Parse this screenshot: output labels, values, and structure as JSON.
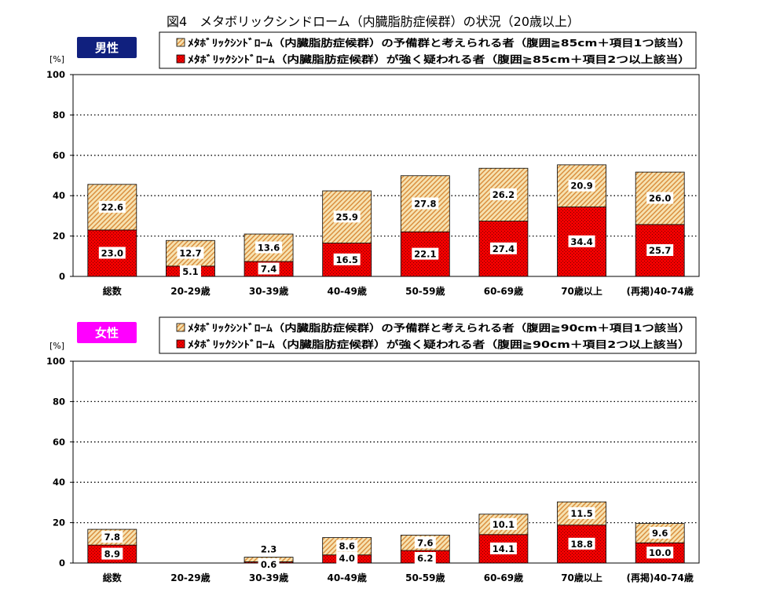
{
  "title": "図4　メタボリックシンドローム（内臓脂肪症候群）の状況（20歳以上）",
  "colors": {
    "strong": "#f20000",
    "strong_dots": "#7a0000",
    "reserve_bg": "#f6e2b0",
    "reserve_hatch": "#d98b3a",
    "male_badge": "#10207e",
    "female_badge": "#ff00ff",
    "axis": "#000000",
    "grid": "#000000"
  },
  "chart_data": [
    {
      "type": "bar",
      "stacked": true,
      "badge": "男性",
      "ylabel": "[%]",
      "ylim": [
        0,
        100
      ],
      "yticks": [
        "0",
        "20",
        "40",
        "60",
        "80",
        "100"
      ],
      "grid": "dotted horizontal",
      "legend_position": "top-center",
      "categories": [
        "総数",
        "20-29歳",
        "30-39歳",
        "40-49歳",
        "50-59歳",
        "60-69歳",
        "70歳以上",
        "(再掲)40-74歳"
      ],
      "series": [
        {
          "name": "ﾒﾀﾎﾞﾘｯｸｼﾝﾄﾞﾛｰﾑ（内臓脂肪症候群）が強く疑われる者（腹囲≧85cm＋項目2つ以上該当）",
          "pattern": "strong",
          "values": [
            23.0,
            5.1,
            7.4,
            16.5,
            22.1,
            27.4,
            34.4,
            25.7
          ],
          "labels": [
            "23.0",
            "5.1",
            "7.4",
            "16.5",
            "22.1",
            "27.4",
            "34.4",
            "25.7"
          ]
        },
        {
          "name": "ﾒﾀﾎﾞﾘｯｸｼﾝﾄﾞﾛｰﾑ（内臓脂肪症候群）の予備群と考えられる者（腹囲≧85cm＋項目1つ該当）",
          "pattern": "reserve",
          "values": [
            22.6,
            12.7,
            13.6,
            25.9,
            27.8,
            26.2,
            20.9,
            26.0
          ],
          "labels": [
            "22.6",
            "12.7",
            "13.6",
            "25.9",
            "27.8",
            "26.2",
            "20.9",
            "26.0"
          ]
        }
      ]
    },
    {
      "type": "bar",
      "stacked": true,
      "badge": "女性",
      "ylabel": "[%]",
      "ylim": [
        0,
        100
      ],
      "yticks": [
        "0",
        "20",
        "40",
        "60",
        "80",
        "100"
      ],
      "grid": "dotted horizontal",
      "legend_position": "top-center",
      "categories": [
        "総数",
        "20-29歳",
        "30-39歳",
        "40-49歳",
        "50-59歳",
        "60-69歳",
        "70歳以上",
        "(再掲)40-74歳"
      ],
      "series": [
        {
          "name": "ﾒﾀﾎﾞﾘｯｸｼﾝﾄﾞﾛｰﾑ（内臓脂肪症候群）が強く疑われる者（腹囲≧90cm＋項目2つ以上該当）",
          "pattern": "strong",
          "values": [
            8.9,
            0,
            0.6,
            4.0,
            6.2,
            14.1,
            18.8,
            10.0
          ],
          "labels": [
            "8.9",
            "",
            "0.6",
            "4.0",
            "6.2",
            "14.1",
            "18.8",
            "10.0"
          ]
        },
        {
          "name": "ﾒﾀﾎﾞﾘｯｸｼﾝﾄﾞﾛｰﾑ（内臓脂肪症候群）の予備群と考えられる者（腹囲≧90cm＋項目1つ該当）",
          "pattern": "reserve",
          "values": [
            7.8,
            0,
            2.3,
            8.6,
            7.6,
            10.1,
            11.5,
            9.6
          ],
          "labels": [
            "7.8",
            "",
            "2.3",
            "8.6",
            "7.6",
            "10.1",
            "11.5",
            "9.6"
          ]
        }
      ]
    }
  ]
}
